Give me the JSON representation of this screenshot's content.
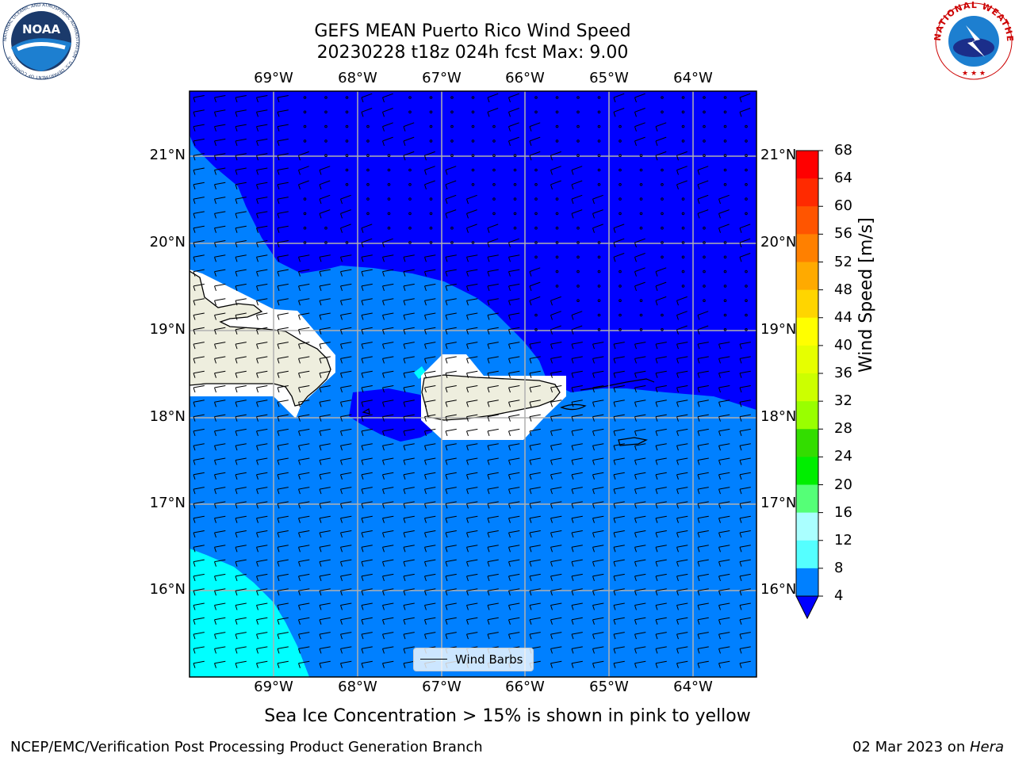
{
  "title_line1": "GEFS MEAN Puerto Rico Wind Speed",
  "title_line2": "20230228 t18z 024h fcst   Max: 9.00",
  "lon_labels": [
    "69°W",
    "68°W",
    "67°W",
    "66°W",
    "65°W",
    "64°W"
  ],
  "lat_labels": [
    "21°N",
    "20°N",
    "19°N",
    "18°N",
    "17°N",
    "16°N"
  ],
  "colorbar": {
    "label": "Wind Speed [m/s]",
    "ticks": [
      "68",
      "64",
      "60",
      "56",
      "52",
      "48",
      "44",
      "40",
      "36",
      "32",
      "28",
      "24",
      "20",
      "16",
      "12",
      "8",
      "4"
    ],
    "colors": [
      "#ff0000",
      "#ff2a00",
      "#ff5500",
      "#ff8000",
      "#ffaa00",
      "#ffd500",
      "#ffff00",
      "#e6ff00",
      "#ccff00",
      "#99ff00",
      "#33dd00",
      "#00ee00",
      "#55ff77",
      "#aaffff",
      "#55ffff",
      "#00ffff",
      "#0080ff"
    ],
    "under_color": "#0000ff"
  },
  "legend_label": "Wind Barbs",
  "subtitle": "Sea Ice Concentration > 15% is shown in pink to yellow",
  "credit": "NCEP/EMC/Verification Post Processing Product Generation Branch",
  "date_text": "02 Mar 2023 on ",
  "date_host": "Hera",
  "noaa_logo_text": "NOAA",
  "noaa_ring_text": "NATIONAL OCEANIC AND ATMOSPHERIC ADMINISTRATION · U.S. DEPARTMENT OF COMMERCE",
  "nws_ring_text": "NATIONAL WEATHER SERVICE",
  "map_colors": {
    "ocean_calm": "#0000ff",
    "ocean_4_8": "#0080ff",
    "ocean_8_12": "#00ffff",
    "land": "#eeeede",
    "mask": "#ffffff"
  }
}
